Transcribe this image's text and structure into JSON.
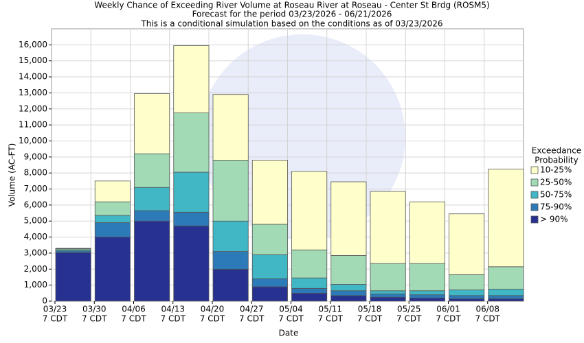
{
  "chart_data": {
    "type": "stacked_bar",
    "title": "Weekly Chance of Exceeding River Volume at Roseau River at Roseau - Center St Brdg (ROSM5)",
    "subtitle": [
      "Forecast for the period 03/23/2026 - 06/21/2026",
      "This is a conditional simulation based on the conditions as of 03/23/2026"
    ],
    "x_label": "Date",
    "y_label": "Volume (AC-FT)",
    "categories": [
      "03/23",
      "03/30",
      "04/06",
      "04/13",
      "04/20",
      "04/27",
      "05/04",
      "05/11",
      "05/18",
      "05/25",
      "06/01",
      "06/08"
    ],
    "category_time_label": "7 CDT",
    "legend_title": [
      "Exceedance",
      "Probability"
    ],
    "series": [
      {
        "name": "> 90%",
        "color": "#27318f",
        "values": [
          3030,
          4000,
          5000,
          4700,
          2000,
          900,
          500,
          350,
          250,
          200,
          150,
          150
        ]
      },
      {
        "name": "75-90%",
        "color": "#2c7bb8",
        "values": [
          100,
          900,
          650,
          850,
          1100,
          500,
          300,
          300,
          200,
          200,
          200,
          200
        ]
      },
      {
        "name": "50-75%",
        "color": "#41b6c4",
        "values": [
          80,
          450,
          1450,
          2500,
          1900,
          1500,
          650,
          400,
          200,
          250,
          350,
          400
        ]
      },
      {
        "name": "25-50%",
        "color": "#a1dab4",
        "values": [
          60,
          850,
          2100,
          3700,
          3800,
          1900,
          1750,
          1800,
          1700,
          1700,
          950,
          1400
        ]
      },
      {
        "name": "10-25%",
        "color": "#ffffcc",
        "values": [
          30,
          1300,
          3750,
          4200,
          4100,
          4000,
          4900,
          4600,
          4500,
          3850,
          3800,
          6100
        ]
      }
    ],
    "ylim": [
      0,
      17000
    ],
    "yticks": [
      0,
      {
        "value": 1000,
        "label": "1,000"
      },
      {
        "value": 2000,
        "label": "2,000"
      },
      {
        "value": 3000,
        "label": "3,000"
      },
      {
        "value": 4000,
        "label": "4,000"
      },
      {
        "value": 5000,
        "label": "5,000"
      },
      {
        "value": 6000,
        "label": "6,000"
      },
      {
        "value": 7000,
        "label": "7,000"
      },
      {
        "value": 8000,
        "label": "8,000"
      },
      {
        "value": 9000,
        "label": "9,000"
      },
      {
        "value": 10000,
        "label": "10,000"
      },
      {
        "value": 11000,
        "label": "11,000"
      },
      {
        "value": 12000,
        "label": "12,000"
      },
      {
        "value": 13000,
        "label": "13,000"
      },
      {
        "value": 14000,
        "label": "14,000"
      },
      {
        "value": 15000,
        "label": "15,000"
      },
      {
        "value": 16000,
        "label": "16,000"
      }
    ],
    "grid": true,
    "legend": "right"
  }
}
